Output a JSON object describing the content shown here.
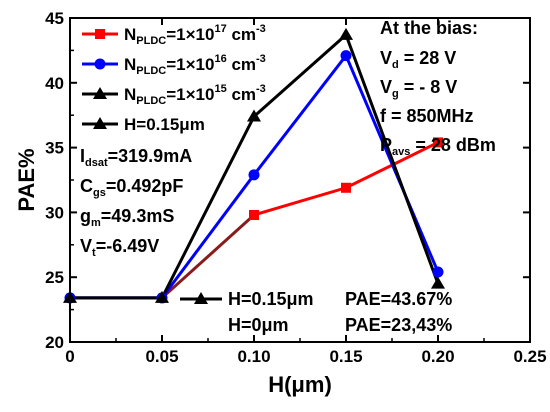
{
  "chart_data": {
    "type": "line",
    "xlabel": "H(μm)",
    "ylabel": "PAE%",
    "xlim": [
      0,
      0.25
    ],
    "ylim": [
      20,
      45
    ],
    "x_ticks": [
      "0",
      "0.05",
      "0.10",
      "0.15",
      "0.20",
      "0.25"
    ],
    "x_tick_values": [
      0,
      0.05,
      0.1,
      0.15,
      0.2,
      0.25
    ],
    "y_ticks": [
      "20",
      "25",
      "30",
      "35",
      "40",
      "45"
    ],
    "y_tick_values": [
      20,
      25,
      30,
      35,
      40,
      45
    ],
    "grid": false,
    "legend_position": "top-left",
    "series": [
      {
        "name_main": "N",
        "name_sub": "PLDC",
        "name_mid": "=1×10",
        "name_sup": "17",
        "name_unit": " cm",
        "name_unit_sup": "-3",
        "color": "#ff0000",
        "marker": "square",
        "x": [
          0.1,
          0.15,
          0.2
        ],
        "y": [
          29.8,
          31.9,
          35.4
        ]
      },
      {
        "name_main": "N",
        "name_sub": "PLDC",
        "name_mid": "=1×10",
        "name_sup": "16",
        "name_unit": " cm",
        "name_unit_sup": "-3",
        "color": "#0000ff",
        "marker": "circle",
        "x": [
          0,
          0.05,
          0.1,
          0.15,
          0.2
        ],
        "y": [
          23.4,
          23.4,
          32.9,
          42.1,
          25.4
        ]
      },
      {
        "name_main": "N",
        "name_sub": "PLDC",
        "name_mid": "=1×10",
        "name_sup": "15",
        "name_unit": " cm",
        "name_unit_sup": "-3",
        "color": "#000000",
        "marker": "triangle",
        "x": [
          0,
          0.05,
          0.1,
          0.15,
          0.2
        ],
        "y": [
          23.4,
          23.4,
          37.4,
          43.7,
          24.5
        ]
      }
    ],
    "shared_segment": {
      "color": "#000000",
      "x": [
        0,
        0.05
      ],
      "y": [
        23.4,
        23.4
      ]
    },
    "tail_segment": {
      "color": "#8b1a1a",
      "x": [
        0.05,
        0.1
      ],
      "y": [
        23.4,
        29.8
      ]
    },
    "legend_extra": "H=0.15μm",
    "params_left": [
      {
        "main": "I",
        "sub": "dsat",
        "rest": "=319.9mA"
      },
      {
        "main": "C",
        "sub": "gs",
        "rest": "=0.492pF"
      },
      {
        "main": "g",
        "sub": "m",
        "rest": "=49.3mS"
      },
      {
        "main": "V",
        "sub": "t",
        "rest": "=-6.49V"
      }
    ],
    "bias_box": {
      "heading": "At the bias:",
      "lines": [
        {
          "main": "V",
          "sub": "d",
          "rest": " = 28 V"
        },
        {
          "main": "V",
          "sub": "g",
          "rest": " = - 8 V"
        },
        {
          "main": "f",
          "sub": "",
          "rest": " = 850MHz"
        },
        {
          "main": "P",
          "sub": "avs",
          "rest": " = 28 dBm"
        }
      ]
    },
    "bottom_annotations": [
      {
        "label": "H=0.15μm",
        "pae": "PAE=43.67%"
      },
      {
        "label": "H=0μm",
        "pae": "PAE=23,43%"
      }
    ]
  }
}
